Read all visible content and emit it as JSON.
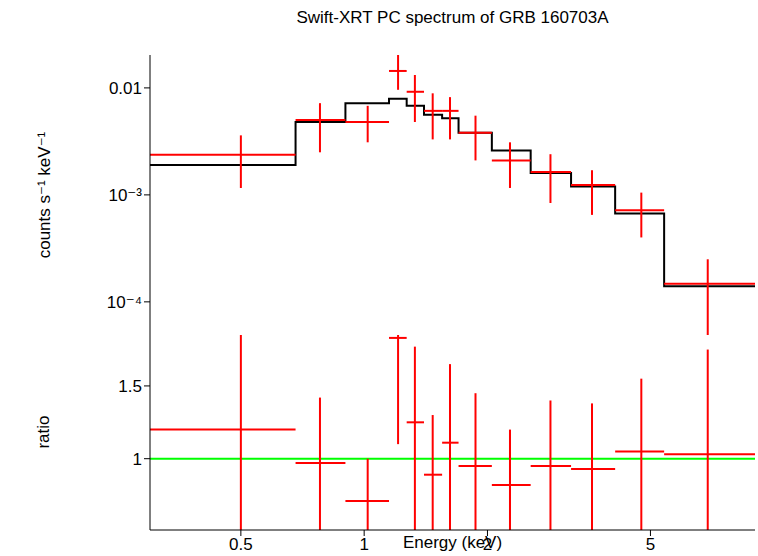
{
  "chart_data": [
    {
      "type": "scatter",
      "title": "Swift-XRT PC spectrum of GRB 160703A",
      "y_label": "counts s⁻¹ keV⁻¹",
      "log": true,
      "tick_labels": "y",
      "color": "#ff0000",
      "marker": "cross",
      "x_bins": [
        0.3,
        0.68,
        0.9,
        1.15,
        1.27,
        1.4,
        1.55,
        1.7,
        2.05,
        2.55,
        3.2,
        4.1,
        5.4,
        9
      ],
      "x": [
        0.5,
        0.78,
        1.02,
        1.21,
        1.33,
        1.47,
        1.62,
        1.87,
        2.27,
        2.85,
        3.6,
        4.75,
        6.9
      ],
      "values": [
        0.00237,
        0.005,
        0.0048,
        0.0144,
        0.0092,
        0.0061,
        0.0061,
        0.0038,
        0.0021,
        0.00164,
        0.00124,
        0.00072,
        0.000148
      ],
      "y_low": [
        0.00116,
        0.0025,
        0.0031,
        0.0096,
        0.0048,
        0.0033,
        0.0033,
        0.0021,
        0.00116,
        0.00084,
        0.00065,
        0.0004,
        4e-05
      ],
      "y_high": [
        0.0036,
        0.0072,
        0.0068,
        0.0203,
        0.0132,
        0.0089,
        0.0082,
        0.0055,
        0.0031,
        0.0024,
        0.0017,
        0.00105,
        0.00025
      ],
      "model": {
        "type": "step",
        "color": "#000000",
        "values": [
          0.0019,
          0.0048,
          0.0072,
          0.0079,
          0.0068,
          0.0056,
          0.0052,
          0.0038,
          0.0026,
          0.0016,
          0.0012,
          0.00067,
          0.00014
        ]
      },
      "xlim": [
        0.3,
        9
      ],
      "xticks": [
        0.5,
        1,
        2,
        5
      ],
      "ylim": [
        4.9e-05,
        0.0203
      ],
      "yticks": [
        {
          "value": 0.01,
          "label": "0.01"
        },
        {
          "value": 0.001,
          "label": "10⁻³"
        },
        {
          "value": 0.0001,
          "label": "10⁻⁴"
        }
      ]
    },
    {
      "type": "scatter",
      "x_label": "Energy (keV)",
      "y_label": "ratio",
      "log": "x",
      "color": "#ff0000",
      "marker": "cross",
      "x_bins": [
        0.3,
        0.68,
        0.9,
        1.15,
        1.27,
        1.4,
        1.55,
        1.7,
        2.05,
        2.55,
        3.2,
        4.1,
        5.4,
        9
      ],
      "x": [
        0.5,
        0.78,
        1.02,
        1.21,
        1.33,
        1.47,
        1.62,
        1.87,
        2.27,
        2.85,
        3.6,
        4.75,
        6.9
      ],
      "values": [
        1.2,
        0.97,
        0.71,
        1.83,
        1.25,
        0.89,
        1.11,
        0.95,
        0.82,
        0.95,
        0.93,
        1.05,
        1.03
      ],
      "y_low": [
        0.5,
        0.5,
        0.5,
        1.1,
        0.5,
        0.5,
        0.5,
        0.5,
        0.5,
        0.5,
        0.5,
        0.5,
        0.5
      ],
      "y_high": [
        1.9,
        1.42,
        1.0,
        1.9,
        1.77,
        1.3,
        1.65,
        1.45,
        1.2,
        1.4,
        1.38,
        1.55,
        1.75
      ],
      "reference_line": {
        "value": 1,
        "color": "#00ff00"
      },
      "xlim": [
        0.3,
        9
      ],
      "xticks": [
        0.5,
        1,
        2,
        5
      ],
      "ylim": [
        0.51,
        1.85
      ],
      "yticks": [
        1,
        1.5
      ]
    }
  ]
}
